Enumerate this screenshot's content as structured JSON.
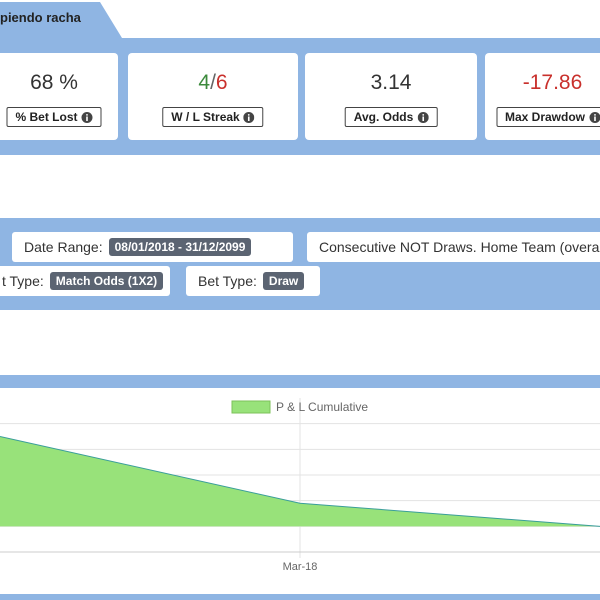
{
  "tab": {
    "label": "piendo racha"
  },
  "stats": [
    {
      "value": "68 %",
      "label": "% Bet Lost"
    },
    {
      "value_parts": [
        "4",
        "/",
        "6"
      ],
      "label": "W / L Streak"
    },
    {
      "value": "3.14",
      "label": "Avg. Odds"
    },
    {
      "value": "-17.86",
      "label": "Max Drawdow"
    }
  ],
  "filters": [
    {
      "label": "Date Range:",
      "badge": "08/01/2018 - 31/12/2099"
    },
    {
      "label": "Consecutive NOT Draws. Home Team (overall):"
    },
    {
      "label": "t Type:",
      "badge": "Match Odds (1X2)"
    },
    {
      "label": "Bet Type:",
      "badge": "Draw"
    }
  ],
  "chart": {
    "type": "area",
    "categories": [
      null,
      "Mar-18",
      null
    ],
    "series": [
      {
        "name": "P & L Cumulative",
        "color": "#98e27a",
        "values": [
          3.5,
          0.9,
          0
        ]
      }
    ],
    "ylim": [
      -1,
      5
    ],
    "gridlines": [
      -1,
      0,
      1,
      2,
      3,
      4
    ],
    "grid": true
  }
}
